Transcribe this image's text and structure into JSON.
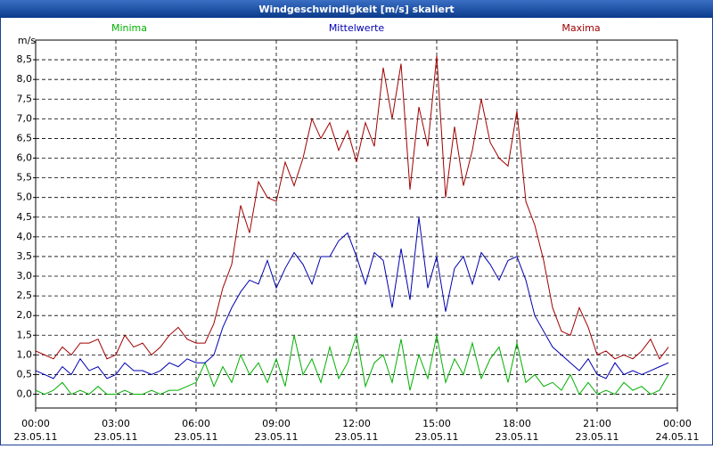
{
  "chart_data": {
    "type": "line",
    "title": "Windgeschwindigkeit [m/s] skaliert",
    "y_unit": "m/s",
    "x": [
      0,
      20,
      40,
      60,
      80,
      100,
      120,
      140,
      160,
      180,
      200,
      220,
      240,
      260,
      280,
      300,
      320,
      340,
      360,
      380,
      400,
      420,
      440,
      460,
      480,
      500,
      520,
      540,
      560,
      580,
      600,
      620,
      640,
      660,
      680,
      700,
      720,
      740,
      760,
      780,
      800,
      820,
      840,
      860,
      880,
      900,
      920,
      940,
      960,
      980,
      1000,
      1020,
      1040,
      1060,
      1080,
      1100,
      1120,
      1140,
      1160,
      1180,
      1200,
      1220,
      1240,
      1260,
      1280,
      1300,
      1320,
      1340,
      1360,
      1380,
      1400,
      1420
    ],
    "xlim": [
      0,
      1440
    ],
    "xticks": [
      {
        "value": 0,
        "label": "00:00"
      },
      {
        "value": 180,
        "label": "03:00"
      },
      {
        "value": 360,
        "label": "06:00"
      },
      {
        "value": 540,
        "label": "09:00"
      },
      {
        "value": 720,
        "label": "12:00"
      },
      {
        "value": 900,
        "label": "15:00"
      },
      {
        "value": 1080,
        "label": "18:00"
      },
      {
        "value": 1260,
        "label": "21:00"
      },
      {
        "value": 1440,
        "label": "00:00"
      }
    ],
    "xtick_dates": [
      "23.05.11",
      "23.05.11",
      "23.05.11",
      "23.05.11",
      "23.05.11",
      "23.05.11",
      "23.05.11",
      "23.05.11",
      "24.05.11"
    ],
    "ylim": [
      -0.35,
      9.0
    ],
    "yticks": [
      {
        "value": 0,
        "label": "0,0"
      },
      {
        "value": 0.5,
        "label": "0,5"
      },
      {
        "value": 1,
        "label": "1,0"
      },
      {
        "value": 1.5,
        "label": "1,5"
      },
      {
        "value": 2,
        "label": "2,0"
      },
      {
        "value": 2.5,
        "label": "2,5"
      },
      {
        "value": 3,
        "label": "3,0"
      },
      {
        "value": 3.5,
        "label": "3,5"
      },
      {
        "value": 4,
        "label": "4,0"
      },
      {
        "value": 4.5,
        "label": "4,5"
      },
      {
        "value": 5,
        "label": "5,0"
      },
      {
        "value": 5.5,
        "label": "5,5"
      },
      {
        "value": 6,
        "label": "6,0"
      },
      {
        "value": 6.5,
        "label": "6,5"
      },
      {
        "value": 7,
        "label": "7,0"
      },
      {
        "value": 7.5,
        "label": "7,5"
      },
      {
        "value": 8,
        "label": "8,0"
      },
      {
        "value": 8.5,
        "label": "8,5"
      }
    ],
    "grid": true,
    "series": [
      {
        "name": "Minima",
        "color": "#00b000",
        "values": [
          0.1,
          0.0,
          0.1,
          0.3,
          0.0,
          0.1,
          0.0,
          0.2,
          0.0,
          0.0,
          0.1,
          0.0,
          0.0,
          0.1,
          0.0,
          0.1,
          0.1,
          0.2,
          0.3,
          0.8,
          0.2,
          0.7,
          0.3,
          1.0,
          0.5,
          0.8,
          0.3,
          0.9,
          0.2,
          1.5,
          0.5,
          0.9,
          0.3,
          1.2,
          0.4,
          0.8,
          1.5,
          0.2,
          0.8,
          1.0,
          0.3,
          1.4,
          0.1,
          1.0,
          0.4,
          1.5,
          0.3,
          0.9,
          0.5,
          1.3,
          0.4,
          0.9,
          1.2,
          0.3,
          1.3,
          0.3,
          0.5,
          0.2,
          0.3,
          0.1,
          0.5,
          0.0,
          0.3,
          0.0,
          0.1,
          0.0,
          0.3,
          0.1,
          0.2,
          0.0,
          0.1,
          0.5
        ]
      },
      {
        "name": "Mittelwerte",
        "color": "#0000b0",
        "values": [
          0.6,
          0.5,
          0.4,
          0.7,
          0.5,
          0.9,
          0.6,
          0.7,
          0.4,
          0.5,
          0.8,
          0.6,
          0.6,
          0.5,
          0.6,
          0.8,
          0.7,
          0.9,
          0.8,
          0.8,
          1.0,
          1.7,
          2.2,
          2.6,
          2.9,
          2.8,
          3.4,
          2.7,
          3.2,
          3.6,
          3.3,
          2.8,
          3.5,
          3.5,
          3.9,
          4.1,
          3.5,
          2.8,
          3.6,
          3.4,
          2.2,
          3.7,
          2.4,
          4.5,
          2.7,
          3.5,
          2.1,
          3.2,
          3.5,
          2.8,
          3.6,
          3.3,
          2.9,
          3.4,
          3.5,
          2.9,
          2.0,
          1.6,
          1.2,
          1.0,
          0.8,
          0.6,
          0.9,
          0.5,
          0.4,
          0.8,
          0.5,
          0.6,
          0.5,
          0.6,
          0.7,
          0.8
        ]
      },
      {
        "name": "Maxima",
        "color": "#a00000",
        "values": [
          1.1,
          1.0,
          0.9,
          1.2,
          1.0,
          1.3,
          1.3,
          1.4,
          0.9,
          1.0,
          1.5,
          1.2,
          1.3,
          1.0,
          1.2,
          1.5,
          1.7,
          1.4,
          1.3,
          1.3,
          1.8,
          2.7,
          3.3,
          4.8,
          4.1,
          5.4,
          5.0,
          4.9,
          5.9,
          5.3,
          6.0,
          7.0,
          6.5,
          6.9,
          6.2,
          6.7,
          5.9,
          6.9,
          6.3,
          8.3,
          7.0,
          8.4,
          5.2,
          7.3,
          6.3,
          8.6,
          5.0,
          6.8,
          5.3,
          6.2,
          7.5,
          6.4,
          6.0,
          5.8,
          7.2,
          4.9,
          4.3,
          3.4,
          2.2,
          1.6,
          1.5,
          2.2,
          1.7,
          1.0,
          1.1,
          0.9,
          1.0,
          0.9,
          1.1,
          1.4,
          0.9,
          1.2
        ]
      }
    ]
  }
}
